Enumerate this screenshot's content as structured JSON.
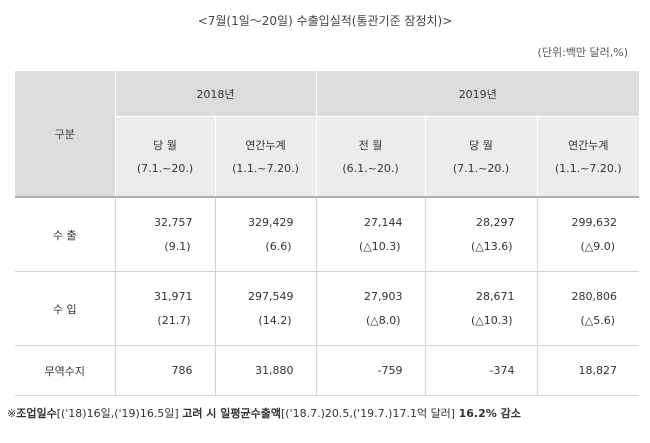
{
  "title": "<7월(1일～20일) 수출입실적(통관기준 잠정치)>",
  "unit": "(단위:백만 달러,%)",
  "table": {
    "category_label": "구분",
    "years": [
      "2018년",
      "2019년"
    ],
    "sub_headers": [
      {
        "name": "당 월",
        "period": "(7.1.~20.)"
      },
      {
        "name": "연간누계",
        "period": "(1.1.~7.20.)"
      },
      {
        "name": "전 월",
        "period": "(6.1.~20.)"
      },
      {
        "name": "당 월",
        "period": "(7.1.~20.)"
      },
      {
        "name": "연간누계",
        "period": "(1.1.~7.20.)"
      }
    ],
    "rows": [
      {
        "label": "수 출",
        "values": [
          "32,757",
          "329,429",
          "27,144",
          "28,297",
          "299,632"
        ],
        "changes": [
          "(9.1)",
          "(6.6)",
          "(△10.3)",
          "(△13.6)",
          "(△9.0)"
        ]
      },
      {
        "label": "수 입",
        "values": [
          "31,971",
          "297,549",
          "27,903",
          "28,671",
          "280,806"
        ],
        "changes": [
          "(21.7)",
          "(14.2)",
          "(△8.0)",
          "(△10.3)",
          "(△5.6)"
        ]
      },
      {
        "label": "무역수지",
        "values": [
          "786",
          "31,880",
          "-759",
          "-374",
          "18,827"
        ]
      }
    ]
  },
  "note": {
    "p1": "※",
    "p2": "조업일수",
    "p3": "[('18)16일,('19)16.5일]",
    "p4": "고려 시 일평균수출액",
    "p5": "[('18.7.)20.5,('19.7.)17.1억 달러]",
    "p6": "16.2% 감소"
  }
}
